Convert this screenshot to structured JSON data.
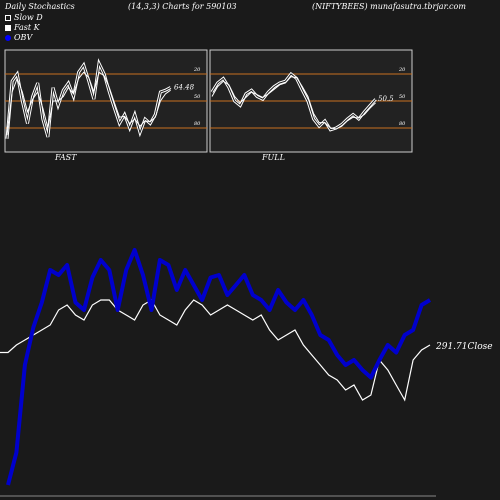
{
  "header": {
    "left": "Daily Stochastics",
    "mid": "(14,3,3) Charts for 590103",
    "right": "(NIFTYBEES) munafasutra.tbrjar.com"
  },
  "legend": [
    {
      "label": "Slow  D",
      "color": "#1a1a1a"
    },
    {
      "label": "Fast K",
      "color": "#ffffff"
    },
    {
      "label": "OBV",
      "color": "#0000ff"
    }
  ],
  "colors": {
    "background": "#1a1a1a",
    "panel": "#222222",
    "level_line": "#c87020",
    "obv": "#0000cc",
    "close": "#ffffff"
  },
  "chart_data": [
    {
      "type": "line",
      "panel": "FAST",
      "caption": "FAST",
      "ylim": [
        0,
        100
      ],
      "levels": [
        20,
        50,
        80
      ],
      "tick_labels": [
        "80",
        "50",
        "20"
      ],
      "last_value_label": "64.48",
      "series": [
        {
          "name": "Fast K",
          "values": [
            8,
            72,
            80,
            50,
            25,
            55,
            70,
            30,
            10,
            65,
            45,
            62,
            70,
            55,
            82,
            90,
            72,
            52,
            92,
            80,
            60,
            42,
            25,
            35,
            20,
            35,
            15,
            30,
            25,
            35,
            60,
            62,
            65
          ]
        },
        {
          "name": "Slow D",
          "values": [
            12,
            60,
            75,
            60,
            38,
            52,
            60,
            42,
            20,
            50,
            50,
            55,
            65,
            58,
            75,
            82,
            76,
            60,
            82,
            78,
            65,
            48,
            32,
            33,
            25,
            30,
            22,
            28,
            27,
            32,
            50,
            58,
            62
          ]
        }
      ]
    },
    {
      "type": "line",
      "panel": "FULL",
      "caption": "FULL",
      "ylim": [
        0,
        100
      ],
      "levels": [
        20,
        50,
        80
      ],
      "tick_labels": [
        "80",
        "50",
        "20"
      ],
      "last_value_label": "50.5",
      "series": [
        {
          "name": "Fast K",
          "values": [
            60,
            70,
            75,
            65,
            50,
            45,
            58,
            62,
            55,
            52,
            60,
            66,
            70,
            72,
            80,
            75,
            62,
            50,
            30,
            22,
            28,
            18,
            20,
            24,
            30,
            35,
            30,
            38,
            45,
            52
          ]
        },
        {
          "name": "Slow D",
          "values": [
            55,
            66,
            72,
            68,
            55,
            48,
            54,
            60,
            57,
            54,
            58,
            63,
            68,
            70,
            77,
            76,
            66,
            55,
            36,
            26,
            26,
            20,
            19,
            22,
            28,
            32,
            31,
            35,
            42,
            48
          ]
        }
      ]
    },
    {
      "type": "line",
      "panel": "OBV",
      "last_value_label": "291.71Close",
      "series": [
        {
          "name": "OBV",
          "values": [
            2,
            15,
            50,
            65,
            75,
            88,
            86,
            90,
            75,
            72,
            85,
            92,
            88,
            72,
            88,
            96,
            86,
            72,
            92,
            90,
            80,
            88,
            82,
            76,
            85,
            86,
            78,
            82,
            86,
            78,
            76,
            72,
            80,
            75,
            72,
            76,
            70,
            62,
            60,
            54,
            50,
            52,
            48,
            45,
            52,
            58,
            55,
            62,
            64,
            74,
            76
          ]
        },
        {
          "name": "Close",
          "values": [
            55,
            58,
            60,
            62,
            64,
            66,
            72,
            74,
            70,
            68,
            74,
            76,
            76,
            72,
            70,
            68,
            74,
            76,
            70,
            68,
            66,
            72,
            76,
            74,
            70,
            72,
            74,
            72,
            70,
            68,
            70,
            64,
            60,
            62,
            64,
            58,
            54,
            50,
            46,
            44,
            40,
            42,
            36,
            38,
            52,
            48,
            42,
            36,
            52,
            56,
            58
          ]
        }
      ]
    }
  ]
}
